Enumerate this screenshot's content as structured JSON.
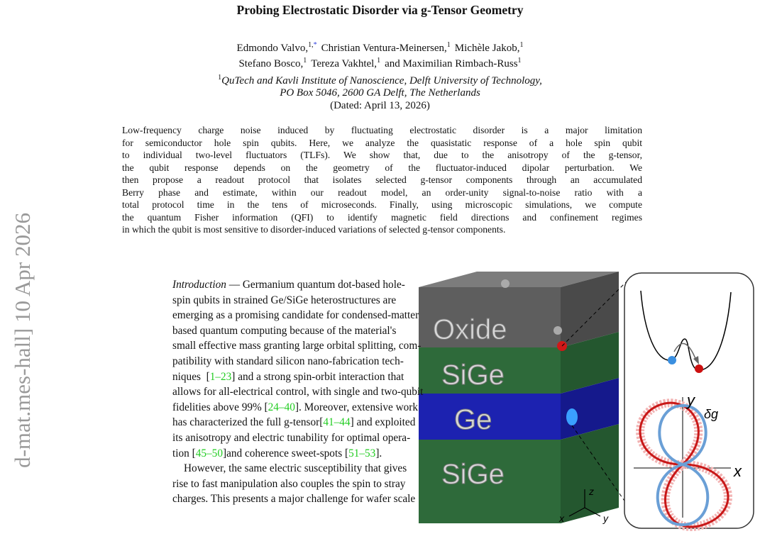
{
  "sidebar": "d-mat.mes-hall]  10 Apr 2026",
  "title": "Probing Electrostatic Disorder via g-Tensor Geometry",
  "authors": [
    [
      {
        "name": "Edmondo Valvo,",
        "sup": "1,",
        "link": "*"
      },
      {
        "name": "Christian Ventura-Meinersen,",
        "sup": "1"
      },
      {
        "name": "Michèle Jakob,",
        "sup": "1"
      }
    ],
    [
      {
        "name": "Stefano Bosco,",
        "sup": "1"
      },
      {
        "name": "Tereza Vakhtel,",
        "sup": "1"
      },
      {
        "name": "and Maximilian Rimbach-Russ",
        "sup": "1"
      }
    ]
  ],
  "affiliation": {
    "sup": "1",
    "lines": [
      "QuTech and Kavli Institute of Nanoscience, Delft University of Technology,",
      "PO Box 5046, 2600 GA Delft, The Netherlands"
    ]
  },
  "dated": "(Dated: April 13, 2026)",
  "abstract": [
    "Low-frequency charge noise induced by fluctuating electrostatic disorder is a major limitation",
    "for semiconductor hole spin qubits. Here, we analyze the quasistatic response of a hole spin qubit",
    "to individual two-level fluctuators (TLFs). We show that, due to the anisotropy of the g-tensor,",
    "the qubit response depends on the geometry of the fluctuator-induced dipolar perturbation. We",
    "then propose a readout protocol that isolates selected g-tensor components through an accumulated",
    "Berry phase and estimate, within our readout model, an order-unity signal-to-noise ratio with a",
    "total protocol time in the tens of microseconds. Finally, using microscopic simulations, we compute",
    "the quantum Fisher information (QFI) to identify magnetic field directions and confinement regimes",
    "in which the qubit is most sensitive to disorder-induced variations of selected g-tensor components."
  ],
  "body": [
    [
      [
        {
          "em": "Introduction"
        },
        " — Germanium quantum dot-based hole-"
      ],
      [
        "spin qubits in strained Ge/SiGe heterostructures are"
      ],
      [
        "emerging as a promising candidate for condensed-matter"
      ],
      [
        "based quantum computing because of the material's"
      ],
      [
        "small effective mass granting large orbital splitting, com-"
      ],
      [
        "patibility with standard silicon nano-fabrication tech-"
      ],
      [
        "niques  [",
        {
          "cite": "1–23"
        },
        "] and a strong spin-orbit interaction that"
      ],
      [
        "allows for all-electrical control, with single and two-qubit"
      ],
      [
        "fidelities above 99% [",
        {
          "cite": "24–40"
        },
        "]. Moreover, extensive work"
      ],
      [
        "has characterized the full g-tensor[",
        {
          "cite": "41–44"
        },
        "] and exploited"
      ],
      [
        "its anisotropy and electric tunability for optimal opera-"
      ],
      [
        "tion [",
        {
          "cite": "45–50"
        },
        "]and coherence sweet-spots [",
        {
          "cite": "51–53"
        },
        "]."
      ]
    ],
    [
      [
        "However, the same electric susceptibility that gives"
      ],
      [
        "rise to fast manipulation also couples the spin to stray"
      ],
      [
        "charges. This presents a major challenge for wafer scale"
      ]
    ]
  ],
  "figure": {
    "layers": [
      "Oxide",
      "SiGe",
      "Ge",
      "SiGe"
    ],
    "axes": {
      "x": "x",
      "y": "y",
      "z": "z"
    },
    "inset": {
      "y": "y",
      "x": "x",
      "delta": "δg"
    }
  }
}
